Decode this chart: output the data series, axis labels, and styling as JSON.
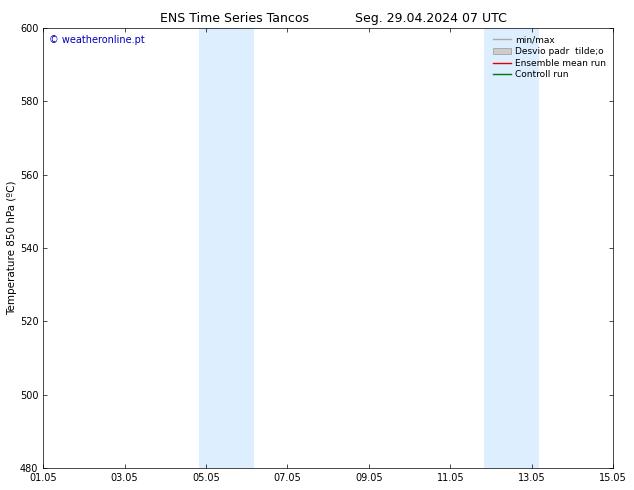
{
  "title_left": "ENS Time Series Tancos",
  "title_right": "Seg. 29.04.2024 07 UTC",
  "ylabel": "Temperature 850 hPa (ºC)",
  "watermark": "© weatheronline.pt",
  "watermark_color": "#0000bb",
  "ylim": [
    480,
    600
  ],
  "yticks": [
    480,
    500,
    520,
    540,
    560,
    580,
    600
  ],
  "xlim_start": 0,
  "xlim_end": 14,
  "xtick_positions": [
    0,
    2,
    4,
    6,
    8,
    10,
    12,
    14
  ],
  "xtick_labels": [
    "01.05",
    "03.05",
    "05.05",
    "07.05",
    "09.05",
    "11.05",
    "13.05",
    "15.05"
  ],
  "shade_bands": [
    {
      "xmin": 3.83,
      "xmax": 5.17
    },
    {
      "xmin": 10.83,
      "xmax": 12.17
    }
  ],
  "shade_color": "#ddeeff",
  "legend_entries": [
    {
      "label": "min/max",
      "color": "#aaaaaa",
      "type": "line"
    },
    {
      "label": "Desvio padr  tilde;o",
      "color": "#cccccc",
      "type": "box"
    },
    {
      "label": "Ensemble mean run",
      "color": "#dd0000",
      "type": "line"
    },
    {
      "label": "Controll run",
      "color": "#007700",
      "type": "line"
    }
  ],
  "bg_color": "#ffffff",
  "plot_bg_color": "#ffffff",
  "title_fontsize": 9,
  "tick_fontsize": 7,
  "ylabel_fontsize": 7.5,
  "legend_fontsize": 6.5,
  "watermark_fontsize": 7
}
